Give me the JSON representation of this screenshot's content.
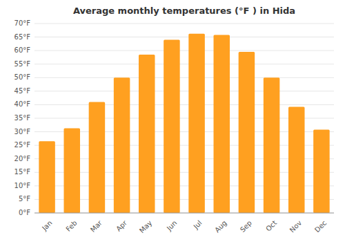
{
  "chart_data": {
    "type": "bar",
    "title": "Average monthly temperatures (°F ) in Hida",
    "categories": [
      "Jan",
      "Feb",
      "Mar",
      "Apr",
      "May",
      "Jun",
      "Jul",
      "Aug",
      "Sep",
      "Oct",
      "Nov",
      "Dec"
    ],
    "values": [
      26.5,
      31.3,
      41.0,
      50.0,
      58.5,
      64.0,
      66.2,
      65.8,
      59.5,
      50.0,
      39.2,
      30.8
    ],
    "color": "#FFA020",
    "ylim": [
      0,
      70
    ],
    "yticks": [
      {
        "value": 0,
        "label": "0°F"
      },
      {
        "value": 5,
        "label": "5°F"
      },
      {
        "value": 10,
        "label": "10°F"
      },
      {
        "value": 15,
        "label": "15°F"
      },
      {
        "value": 20,
        "label": "20°F"
      },
      {
        "value": 25,
        "label": "25°F"
      },
      {
        "value": 30,
        "label": "30°F"
      },
      {
        "value": 35,
        "label": "35°F"
      },
      {
        "value": 40,
        "label": "40°F"
      },
      {
        "value": 45,
        "label": "45°F"
      },
      {
        "value": 50,
        "label": "50°F"
      },
      {
        "value": 55,
        "label": "55°F"
      },
      {
        "value": 60,
        "label": "60°F"
      },
      {
        "value": 65,
        "label": "65°F"
      },
      {
        "value": 70,
        "label": "70°F"
      }
    ],
    "grid": true
  }
}
